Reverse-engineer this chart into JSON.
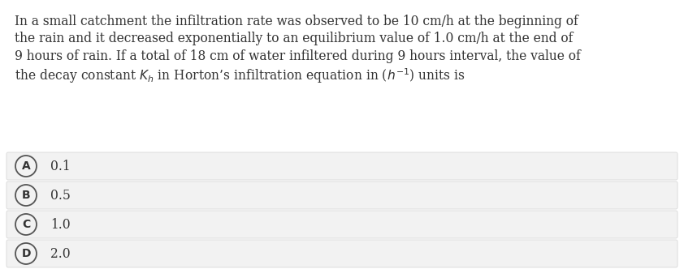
{
  "background_color": "#ffffff",
  "question_bg_color": "#ffffff",
  "option_box_color": "#f2f2f2",
  "option_box_edge_color": "#d8d8d8",
  "circle_color": "#f2f2f2",
  "circle_edge_color": "#555555",
  "text_color": "#333333",
  "question_text_lines": [
    "In a small catchment the infiltration rate was observed to be 10 cm/h at the beginning of",
    "the rain and it decreased exponentially to an equilibrium value of 1.0 cm/h at the end of",
    "9 hours of rain. If a total of 18 cm of water infiltered during 9 hours interval, the value of",
    "the decay constant $K_h$ in Horton’s infiltration equation in ($h^{-1}$) units is"
  ],
  "options": [
    {
      "label": "A",
      "value": "0.1"
    },
    {
      "label": "B",
      "value": "0.5"
    },
    {
      "label": "C",
      "value": "1.0"
    },
    {
      "label": "D",
      "value": "2.0"
    }
  ],
  "font_size_question": 11.2,
  "font_size_options": 11.2,
  "fig_width": 8.42,
  "fig_height": 3.32,
  "dpi": 100
}
